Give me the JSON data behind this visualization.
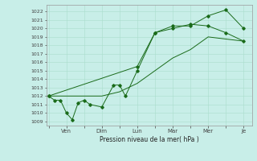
{
  "background_color": "#c8eee8",
  "grid_color": "#aaddcc",
  "line_color": "#1a6b1a",
  "marker_color": "#1a6b1a",
  "ylabel": "Pression niveau de la mer( hPa )",
  "ylim": [
    1008.5,
    1022.8
  ],
  "yticks": [
    1009,
    1010,
    1011,
    1012,
    1013,
    1014,
    1015,
    1016,
    1017,
    1018,
    1019,
    1020,
    1021,
    1022
  ],
  "xtick_labels": [
    "",
    "Ven",
    "",
    "Dim",
    "",
    "Lun",
    "",
    "Mar",
    "",
    "Mer",
    "",
    "Je"
  ],
  "xtick_positions": [
    0,
    1.5,
    3,
    4.5,
    6,
    7.5,
    9,
    10.5,
    12,
    13.5,
    15,
    16.5
  ],
  "line1_x": [
    0,
    0.5,
    1.0,
    1.5,
    2.0,
    2.5,
    3.0,
    3.5,
    4.5,
    5.5,
    6.0,
    6.5,
    7.5,
    9.0,
    10.5,
    12.0,
    13.5,
    15.0,
    16.5
  ],
  "line1_y": [
    1012,
    1011.5,
    1011.5,
    1010,
    1009.2,
    1011.2,
    1011.5,
    1011.0,
    1010.7,
    1013.3,
    1013.3,
    1012.0,
    1015.0,
    1019.5,
    1020.0,
    1020.5,
    1020.3,
    1019.5,
    1018.5
  ],
  "line2_x": [
    0,
    3.0,
    4.5,
    6.0,
    7.5,
    9.0,
    10.5,
    12.0,
    13.5,
    16.5
  ],
  "line2_y": [
    1012,
    1012,
    1012,
    1012.5,
    1013.5,
    1015.0,
    1016.5,
    1017.5,
    1019.0,
    1018.5
  ],
  "line3_x": [
    0,
    7.5,
    9.0,
    10.5,
    12.0,
    13.5,
    15.0,
    16.5
  ],
  "line3_y": [
    1012,
    1015.5,
    1019.5,
    1020.3,
    1020.3,
    1021.5,
    1022.2,
    1020.0
  ]
}
